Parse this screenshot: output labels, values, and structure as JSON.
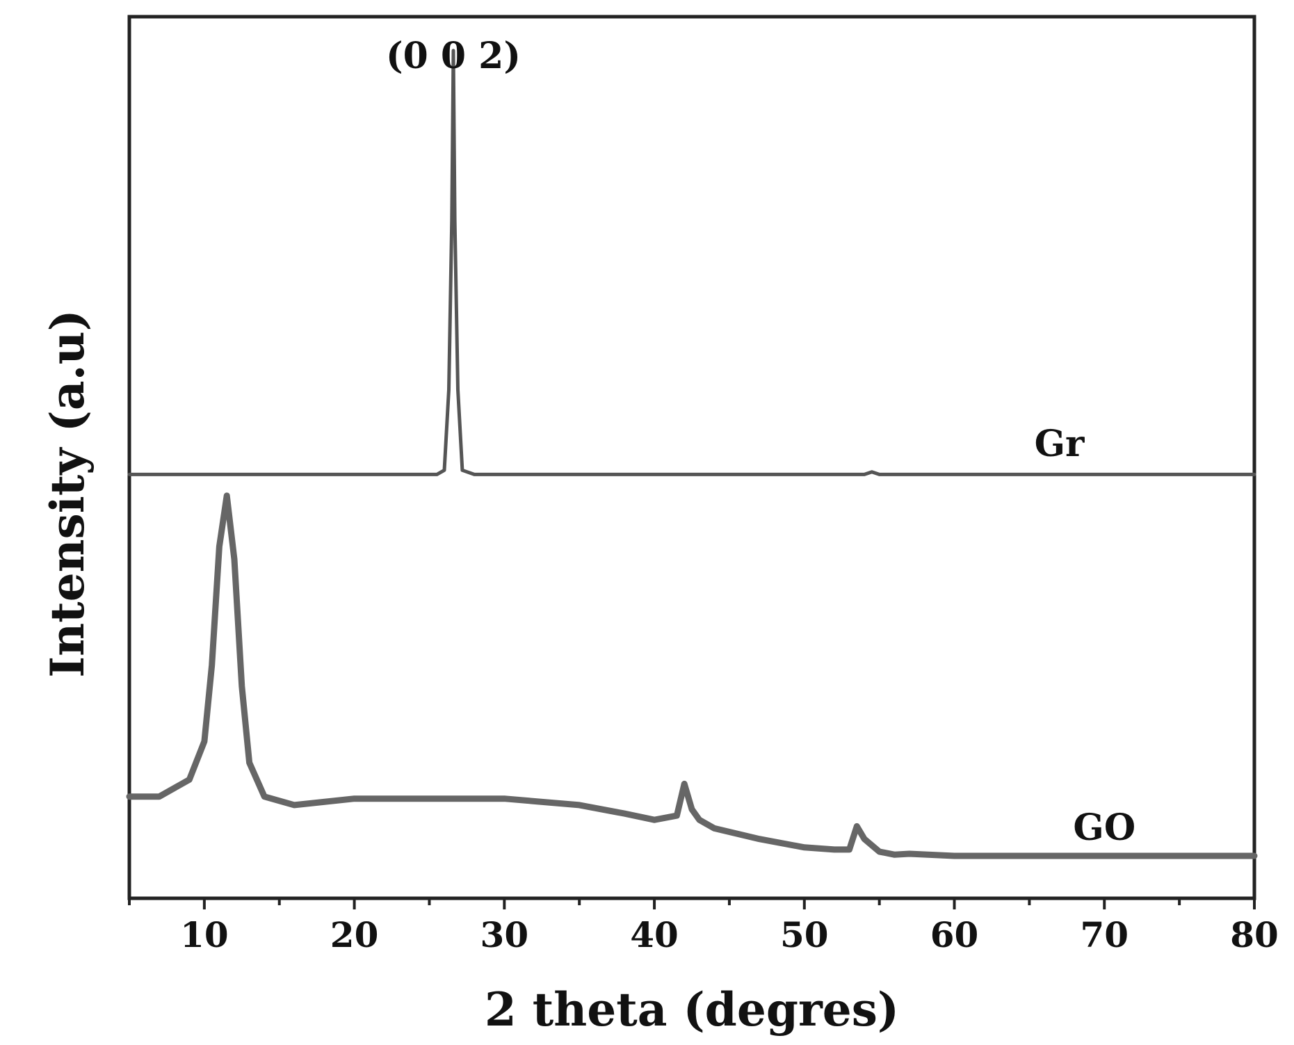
{
  "chart_data": {
    "type": "line",
    "title": "",
    "xlabel": "2 theta (degres)",
    "ylabel": "Intensity (a.u)",
    "xlim": [
      5,
      80
    ],
    "xticks": [
      10,
      20,
      30,
      40,
      50,
      60,
      70,
      80
    ],
    "y_ticks_shown": false,
    "grid": false,
    "legend": "none",
    "annotations": [
      {
        "text": "(0 0 2)",
        "x": 26.6
      },
      {
        "text": "Gr",
        "x": 67
      },
      {
        "text": "GO",
        "x": 70
      }
    ],
    "series": [
      {
        "name": "Gr",
        "color": "#555555",
        "x": [
          5,
          10,
          20,
          25.5,
          26.0,
          26.3,
          26.5,
          26.6,
          26.7,
          26.9,
          27.2,
          28,
          40,
          54,
          54.5,
          55,
          60,
          70,
          80
        ],
        "y": [
          1.0,
          1.0,
          1.0,
          1.0,
          1.01,
          1.2,
          1.6,
          2.0,
          1.6,
          1.2,
          1.01,
          1.0,
          1.0,
          1.0,
          1.006,
          1.0,
          1.0,
          1.0,
          1.0
        ]
      },
      {
        "name": "GO",
        "color": "#666666",
        "x": [
          5,
          7,
          9,
          10,
          10.5,
          11,
          11.5,
          12,
          12.5,
          13,
          14,
          16,
          20,
          25,
          30,
          35,
          38,
          40,
          41.5,
          42,
          42.5,
          43,
          44,
          47,
          50,
          52,
          53,
          53.5,
          54,
          55,
          56,
          57,
          60,
          70,
          80
        ],
        "y": [
          0.24,
          0.24,
          0.28,
          0.37,
          0.55,
          0.83,
          0.95,
          0.8,
          0.5,
          0.32,
          0.24,
          0.22,
          0.235,
          0.235,
          0.235,
          0.22,
          0.2,
          0.185,
          0.195,
          0.27,
          0.21,
          0.185,
          0.165,
          0.14,
          0.12,
          0.115,
          0.115,
          0.17,
          0.14,
          0.11,
          0.103,
          0.105,
          0.1,
          0.1,
          0.1
        ]
      }
    ]
  }
}
